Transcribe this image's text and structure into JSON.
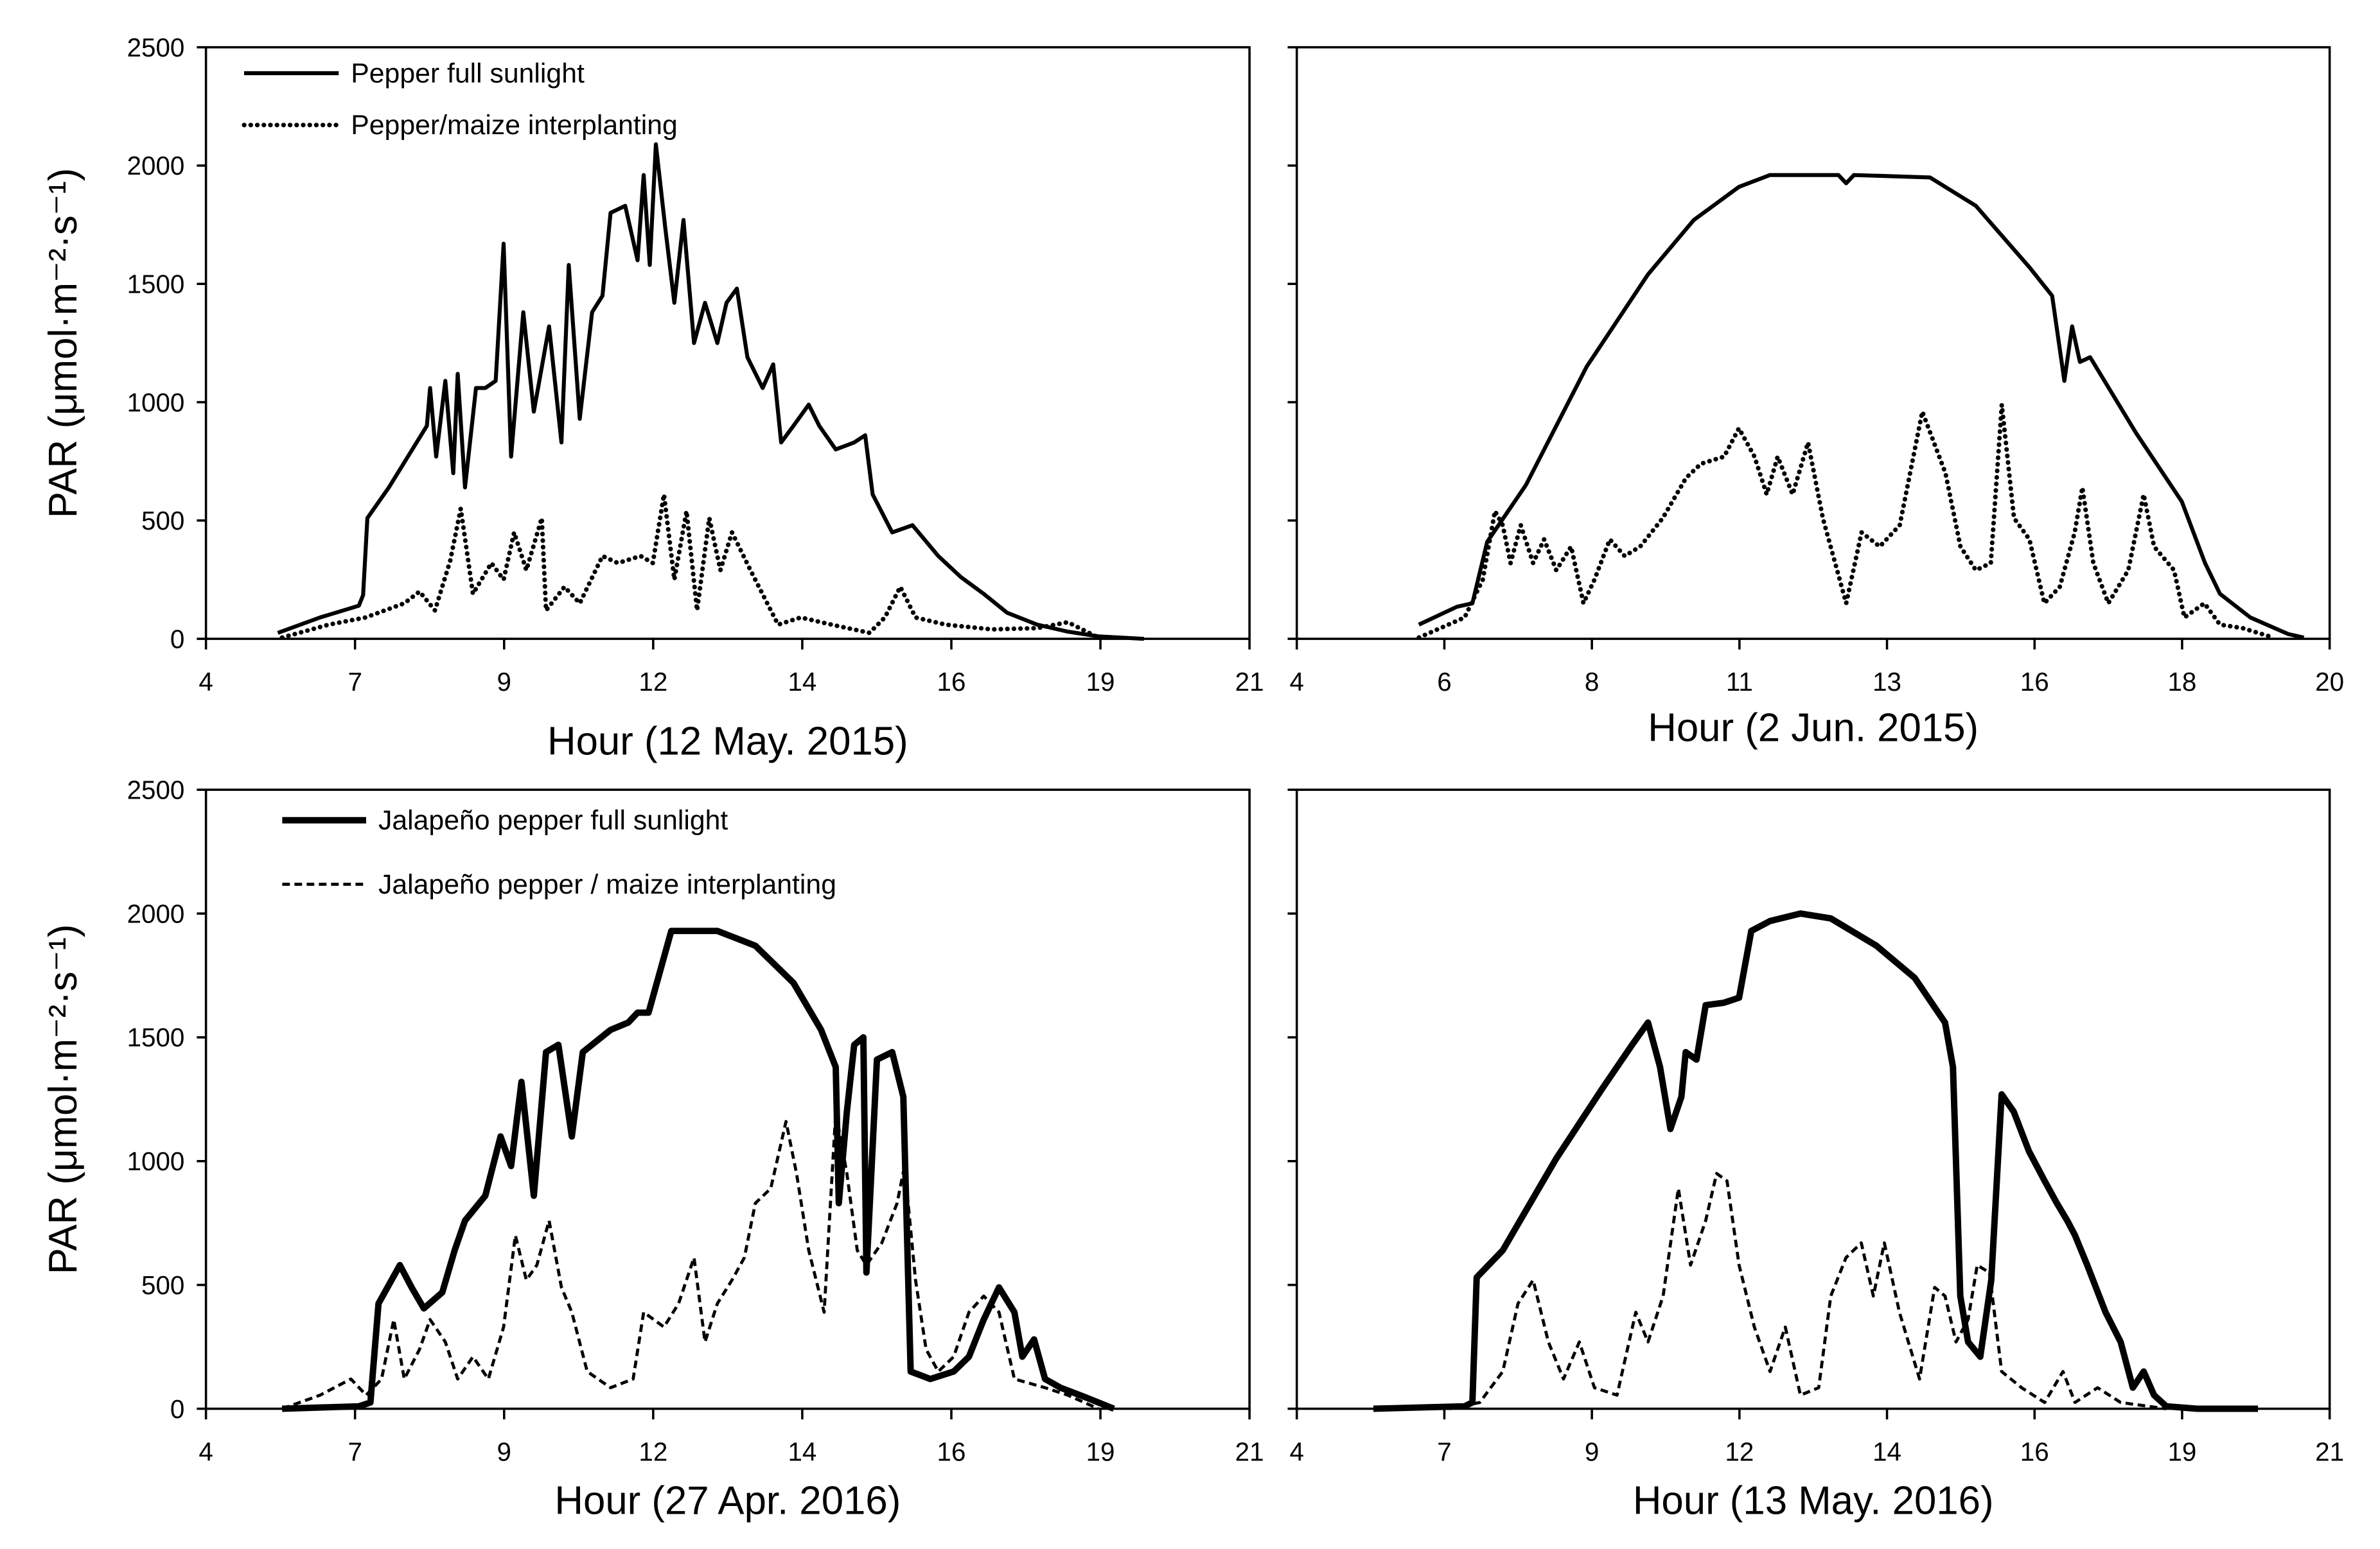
{
  "y_axis_label": "PAR (μmol·m⁻²·s⁻¹)",
  "chart_data": [
    {
      "type": "line",
      "xlabel": "Hour (12 May. 2015)",
      "ylabel": "PAR (μmol·m⁻²·s⁻¹)",
      "xlim": [
        4,
        21
      ],
      "ylim": [
        0,
        2500
      ],
      "xtick_labels": [
        "4",
        "7",
        "9",
        "12",
        "14",
        "16",
        "19",
        "21"
      ],
      "ytick_labels": [
        "0",
        "500",
        "1000",
        "1500",
        "2000",
        "2500"
      ],
      "yticks_labeled": true,
      "grid": false,
      "legend": "top-left",
      "series": [
        {
          "name": "Pepper full sunlight",
          "style": "solid",
          "x": [
            5.17,
            5.86,
            6.49,
            6.56,
            6.63,
            6.98,
            7.6,
            7.65,
            7.75,
            7.9,
            8.03,
            8.1,
            8.22,
            8.4,
            8.55,
            8.72,
            8.85,
            8.97,
            9.17,
            9.34,
            9.59,
            9.79,
            9.91,
            10.09,
            10.29,
            10.46,
            10.59,
            10.83,
            11.03,
            11.13,
            11.23,
            11.33,
            11.48,
            11.63,
            11.78,
            11.95,
            12.13,
            12.33,
            12.48,
            12.65,
            12.82,
            13.07,
            13.24,
            13.37,
            13.57,
            13.82,
            13.99,
            14.26,
            14.56,
            14.74,
            14.86,
            15.18,
            15.51,
            15.93,
            16.3,
            16.67,
            17.05,
            17.54,
            18.04,
            18.54,
            19.28
          ],
          "y": [
            25,
            90,
            140,
            185,
            510,
            640,
            900,
            1060,
            770,
            1090,
            700,
            1120,
            640,
            1060,
            1060,
            1090,
            1670,
            770,
            1380,
            960,
            1320,
            830,
            1580,
            930,
            1380,
            1450,
            1800,
            1830,
            1600,
            1960,
            1580,
            2090,
            1740,
            1420,
            1770,
            1250,
            1420,
            1250,
            1420,
            1480,
            1190,
            1060,
            1160,
            830,
            900,
            990,
            900,
            800,
            830,
            860,
            610,
            450,
            480,
            350,
            260,
            190,
            110,
            60,
            30,
            10,
            0
          ]
        },
        {
          "name": "Pepper/maize interplanting",
          "style": "dotted",
          "x": [
            5.24,
            6.0,
            6.6,
            7.23,
            7.48,
            7.73,
            7.98,
            8.15,
            8.35,
            8.65,
            8.85,
            9.02,
            9.22,
            9.47,
            9.54,
            9.84,
            10.09,
            10.46,
            10.71,
            11.08,
            11.28,
            11.46,
            11.63,
            11.83,
            12.0,
            12.2,
            12.38,
            12.57,
            12.87,
            13.32,
            13.69,
            14.19,
            14.81,
            15.06,
            15.31,
            15.56,
            16.05,
            16.8,
            17.54,
            18.04,
            18.54
          ],
          "y": [
            5,
            60,
            90,
            150,
            200,
            120,
            330,
            550,
            190,
            320,
            250,
            450,
            290,
            510,
            120,
            220,
            150,
            350,
            320,
            350,
            320,
            610,
            250,
            540,
            120,
            510,
            290,
            450,
            290,
            60,
            90,
            60,
            25,
            90,
            220,
            90,
            60,
            40,
            45,
            70,
            5
          ]
        }
      ]
    },
    {
      "type": "line",
      "xlabel": "Hour (2 Jun. 2015)",
      "xlim": [
        4,
        20
      ],
      "ylim": [
        0,
        2500
      ],
      "xtick_labels": [
        "4",
        "6",
        "8",
        "11",
        "13",
        "16",
        "18",
        "20"
      ],
      "yticks_labeled": false,
      "grid": false,
      "series": [
        {
          "style": "solid",
          "x": [
            5.89,
            6.48,
            6.72,
            6.95,
            7.55,
            8.49,
            9.44,
            10.15,
            10.85,
            11.33,
            12.39,
            12.51,
            12.63,
            13.81,
            14.52,
            15.35,
            15.7,
            15.89,
            16.01,
            16.13,
            16.29,
            17.0,
            17.71,
            18.07,
            18.3,
            18.77,
            19.36,
            19.6
          ],
          "y": [
            60,
            135,
            150,
            410,
            650,
            1150,
            1540,
            1770,
            1910,
            1960,
            1960,
            1925,
            1960,
            1950,
            1830,
            1570,
            1450,
            1090,
            1320,
            1170,
            1190,
            870,
            580,
            320,
            190,
            90,
            20,
            5
          ]
        },
        {
          "style": "dotted",
          "x": [
            5.89,
            6.6,
            6.88,
            7.07,
            7.19,
            7.31,
            7.47,
            7.66,
            7.83,
            8.02,
            8.25,
            8.44,
            8.61,
            8.85,
            9.08,
            9.32,
            9.67,
            10.03,
            10.26,
            10.62,
            10.85,
            11.09,
            11.28,
            11.45,
            11.68,
            11.92,
            12.15,
            12.51,
            12.75,
            13.03,
            13.34,
            13.69,
            14.05,
            14.28,
            14.52,
            14.75,
            14.92,
            15.11,
            15.35,
            15.58,
            15.82,
            16.05,
            16.17,
            16.34,
            16.57,
            16.88,
            17.12,
            17.28,
            17.59,
            17.75,
            18.06,
            18.3,
            18.65,
            19.13
          ],
          "y": [
            5,
            90,
            250,
            540,
            480,
            320,
            480,
            320,
            420,
            290,
            390,
            150,
            250,
            420,
            350,
            390,
            510,
            680,
            740,
            770,
            890,
            770,
            610,
            770,
            610,
            830,
            510,
            150,
            450,
            390,
            480,
            960,
            700,
            390,
            290,
            320,
            990,
            510,
            420,
            150,
            220,
            450,
            640,
            320,
            150,
            290,
            610,
            390,
            290,
            90,
            150,
            60,
            45,
            5
          ]
        }
      ]
    },
    {
      "type": "line",
      "xlabel": "Hour (27 Apr. 2016)",
      "ylabel": "PAR (μmol·m⁻²·s⁻¹)",
      "xlim": [
        4,
        21
      ],
      "ylim": [
        0,
        2500
      ],
      "xtick_labels": [
        "4",
        "7",
        "9",
        "12",
        "14",
        "16",
        "19",
        "21"
      ],
      "ytick_labels": [
        "0",
        "500",
        "1000",
        "1500",
        "2000",
        "2500"
      ],
      "yticks_labeled": true,
      "grid": false,
      "legend": "top-left",
      "series": [
        {
          "name": "Jalapeño pepper full sunlight",
          "style": "thick-solid",
          "x": [
            5.24,
            6.49,
            6.68,
            6.81,
            7.16,
            7.35,
            7.55,
            7.85,
            8.05,
            8.22,
            8.55,
            8.8,
            8.97,
            9.14,
            9.34,
            9.54,
            9.74,
            9.96,
            10.14,
            10.59,
            10.88,
            11.03,
            11.21,
            11.58,
            12.33,
            12.95,
            13.57,
            14.02,
            14.26,
            14.31,
            14.44,
            14.56,
            14.71,
            14.76,
            14.93,
            15.18,
            15.36,
            15.48,
            15.8,
            16.18,
            16.43,
            16.67,
            16.92,
            17.17,
            17.3,
            17.49,
            17.67,
            17.92,
            18.29,
            18.79
          ],
          "y": [
            0,
            10,
            25,
            425,
            580,
            490,
            405,
            470,
            640,
            760,
            860,
            1100,
            980,
            1320,
            860,
            1440,
            1470,
            1100,
            1440,
            1530,
            1560,
            1600,
            1600,
            1930,
            1930,
            1870,
            1720,
            1530,
            1380,
            830,
            1200,
            1470,
            1500,
            550,
            1410,
            1440,
            1260,
            150,
            120,
            150,
            210,
            360,
            490,
            390,
            210,
            280,
            120,
            85,
            50,
            0
          ]
        },
        {
          "name": "Jalapeño pepper / maize interplanting",
          "style": "dashed",
          "x": [
            5.24,
            5.86,
            6.36,
            6.61,
            6.86,
            7.06,
            7.23,
            7.48,
            7.65,
            7.9,
            8.1,
            8.35,
            8.6,
            8.85,
            9.04,
            9.22,
            9.39,
            9.59,
            9.79,
            9.96,
            10.21,
            10.59,
            10.96,
            11.13,
            11.46,
            11.7,
            11.95,
            12.13,
            12.33,
            12.57,
            12.77,
            12.95,
            13.2,
            13.45,
            13.62,
            13.82,
            14.07,
            14.26,
            14.44,
            14.61,
            14.76,
            15.01,
            15.26,
            15.38,
            15.56,
            15.73,
            15.93,
            16.18,
            16.43,
            16.67,
            16.92,
            17.17,
            17.67,
            18.04,
            18.54
          ],
          "y": [
            0,
            55,
            120,
            55,
            120,
            360,
            120,
            240,
            360,
            270,
            120,
            210,
            120,
            330,
            700,
            520,
            580,
            760,
            490,
            390,
            150,
            85,
            120,
            390,
            330,
            425,
            610,
            270,
            425,
            520,
            610,
            830,
            890,
            1160,
            950,
            640,
            390,
            1200,
            950,
            640,
            580,
            670,
            830,
            980,
            520,
            240,
            150,
            210,
            390,
            455,
            390,
            120,
            85,
            55,
            0
          ]
        }
      ]
    },
    {
      "type": "line",
      "xlabel": "Hour (13 May. 2016)",
      "xlim": [
        4,
        21
      ],
      "ylim": [
        0,
        2500
      ],
      "xtick_labels": [
        "4",
        "7",
        "9",
        "12",
        "14",
        "16",
        "19",
        "21"
      ],
      "yticks_labeled": false,
      "grid": false,
      "series": [
        {
          "style": "thick-solid",
          "x": [
            5.26,
            6.76,
            6.89,
            6.96,
            7.39,
            8.27,
            9.02,
            9.52,
            9.78,
            9.98,
            10.15,
            10.33,
            10.4,
            10.58,
            10.73,
            11.03,
            11.28,
            11.48,
            11.79,
            12.29,
            12.79,
            13.54,
            14.17,
            14.67,
            14.8,
            14.92,
            15.05,
            15.25,
            15.43,
            15.6,
            15.8,
            16.05,
            16.31,
            16.51,
            16.68,
            16.81,
            17.01,
            17.31,
            17.56,
            17.76,
            17.94,
            18.11,
            18.31,
            18.82,
            19.82
          ],
          "y": [
            0,
            10,
            25,
            530,
            640,
            1010,
            1290,
            1470,
            1560,
            1380,
            1130,
            1260,
            1440,
            1410,
            1630,
            1640,
            1660,
            1930,
            1970,
            2000,
            1980,
            1870,
            1740,
            1560,
            1380,
            455,
            270,
            210,
            520,
            1270,
            1200,
            1040,
            920,
            830,
            760,
            700,
            580,
            390,
            270,
            85,
            150,
            55,
            10,
            0,
            0
          ]
        },
        {
          "style": "dashed",
          "x": [
            6.51,
            7.01,
            7.39,
            7.64,
            7.89,
            8.14,
            8.39,
            8.65,
            8.9,
            9.27,
            9.58,
            9.78,
            10.03,
            10.28,
            10.48,
            10.73,
            10.91,
            11.08,
            11.28,
            11.53,
            11.79,
            12.04,
            12.29,
            12.59,
            12.79,
            13.04,
            13.29,
            13.49,
            13.67,
            13.92,
            14.25,
            14.5,
            14.67,
            14.85,
            15.05,
            15.2,
            15.4,
            15.6,
            15.93,
            16.31,
            16.61,
            16.81,
            17.18,
            17.56,
            18.31
          ],
          "y": [
            0,
            25,
            150,
            425,
            520,
            270,
            120,
            270,
            85,
            55,
            390,
            270,
            455,
            890,
            580,
            760,
            950,
            920,
            580,
            330,
            150,
            330,
            55,
            85,
            455,
            610,
            670,
            455,
            670,
            390,
            120,
            490,
            455,
            270,
            360,
            580,
            550,
            150,
            85,
            25,
            150,
            25,
            85,
            25,
            0
          ]
        }
      ]
    }
  ]
}
